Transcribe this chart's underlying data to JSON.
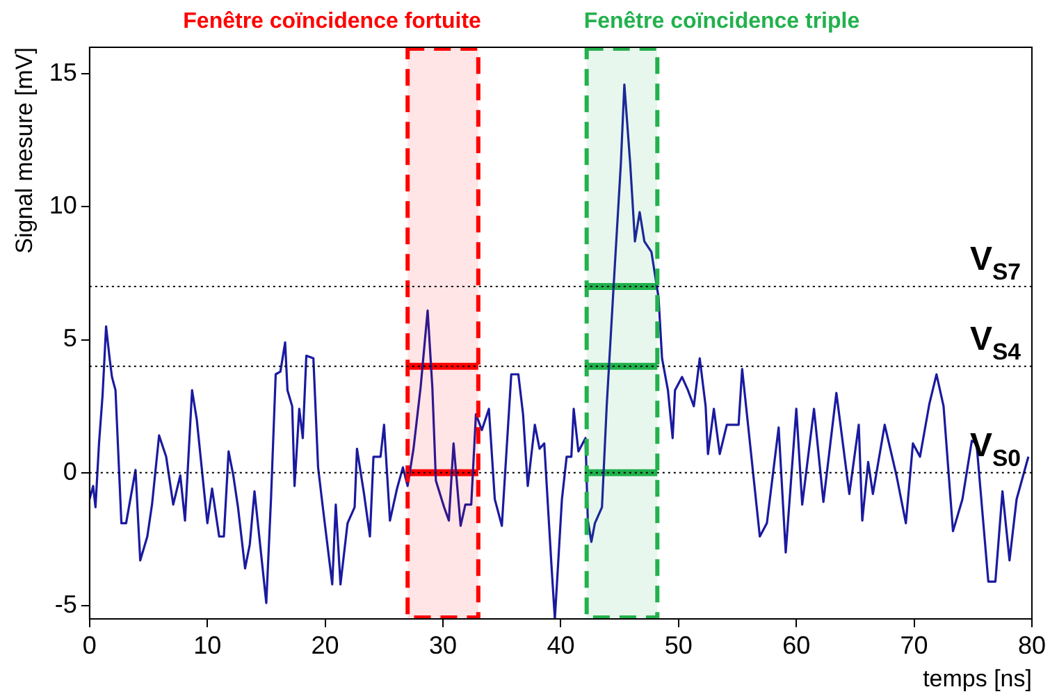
{
  "chart_data": {
    "type": "line",
    "xlabel": "temps [ns]",
    "ylabel": "Signal mesure [mV]",
    "xlim": [
      0,
      80
    ],
    "xticks": [
      0,
      10,
      20,
      30,
      40,
      50,
      60,
      70,
      80
    ],
    "ylim": [
      -5.5,
      16
    ],
    "yticks": [
      -5,
      0,
      5,
      10,
      15
    ],
    "series": [
      {
        "color": "#1a1aa0",
        "x": [
          0,
          0.3,
          0.5,
          0.8,
          1.1,
          1.4,
          1.7,
          1.9,
          2.2,
          2.7,
          3.1,
          3.9,
          4.3,
          4.9,
          5.3,
          5.9,
          6.5,
          7.1,
          7.7,
          8.1,
          8.7,
          9.1,
          10,
          10.4,
          11,
          11.4,
          11.8,
          12.2,
          12.6,
          13.2,
          13.6,
          14,
          15,
          15.4,
          15.8,
          16.2,
          16.6,
          16.8,
          17.2,
          17.4,
          17.8,
          18.1,
          18.4,
          19,
          19.4,
          19.8,
          20.6,
          20.9,
          21.3,
          21.9,
          22.5,
          22.7,
          23.3,
          23.8,
          24.1,
          24.7,
          25,
          25.5,
          26.1,
          26.6,
          27,
          27.5,
          28.1,
          28.7,
          29.1,
          29.4,
          30.1,
          30.5,
          30.9,
          31.5,
          31.9,
          32.4,
          32.8,
          33.3,
          33.9,
          34.4,
          35,
          35.8,
          36.4,
          36.8,
          37.2,
          37.8,
          38.2,
          38.6,
          39.2,
          39.5,
          40.1,
          40.5,
          40.9,
          41.1,
          41.5,
          42.1,
          42.3,
          42.6,
          42.9,
          43.5,
          43.9,
          44.5,
          45.1,
          45.4,
          45.9,
          46.3,
          46.7,
          47.1,
          47.7,
          48.3,
          48.6,
          49.1,
          49.5,
          49.7,
          50.3,
          50.8,
          51.3,
          51.8,
          52.3,
          52.5,
          53,
          53.5,
          54.1,
          55.1,
          55.4,
          55.9,
          56.9,
          57.5,
          58.5,
          59.1,
          60,
          60.5,
          61.5,
          62.3,
          63.4,
          64.5,
          65.3,
          65.6,
          66.1,
          66.5,
          67.5,
          68.5,
          69.3,
          69.9,
          70.5,
          71.3,
          71.9,
          72.5,
          73.3,
          74.1,
          74.9,
          75.3,
          76.3,
          76.9,
          77.5,
          78.1,
          78.7,
          79.7
        ],
        "values": [
          -1,
          -0.5,
          -1.3,
          1.1,
          2.9,
          5.5,
          4.3,
          3.6,
          3.1,
          -1.9,
          -1.9,
          0.1,
          -3.3,
          -2.4,
          -1.2,
          1.4,
          0.6,
          -1.2,
          -0.1,
          -1.8,
          3.1,
          2,
          -1.9,
          -0.6,
          -2.4,
          -2.4,
          0.8,
          -0.1,
          -1.3,
          -3.6,
          -2.7,
          -0.7,
          -4.9,
          -1,
          3.7,
          3.8,
          4.9,
          3.1,
          2.5,
          -0.5,
          2.4,
          1.3,
          4.4,
          4.3,
          0.2,
          -1.3,
          -4.2,
          -1.2,
          -4.2,
          -1.9,
          -1.3,
          0.9,
          -0.8,
          -2.4,
          0.6,
          0.6,
          1.8,
          -1.8,
          -0.6,
          0.2,
          -0.5,
          0.9,
          3.2,
          6.1,
          3.2,
          -0.3,
          -1.3,
          -1.8,
          1.1,
          -2,
          -1.2,
          -1.2,
          2.2,
          1.6,
          2.4,
          -1,
          -2,
          3.7,
          3.7,
          2.2,
          -0.5,
          1.8,
          0.9,
          1.1,
          -3.4,
          -5.5,
          -1,
          0.6,
          0.6,
          2.4,
          0.8,
          1.3,
          -1.8,
          -2.6,
          -1.9,
          -1.3,
          2.5,
          7.1,
          11.6,
          14.6,
          11.6,
          8.7,
          9.8,
          8.7,
          8.3,
          6.6,
          4.3,
          3.1,
          1.3,
          3.1,
          3.6,
          3.1,
          2.5,
          4.3,
          2.5,
          0.7,
          2.4,
          0.7,
          1.8,
          1.8,
          3.9,
          1.8,
          -2.4,
          -1.9,
          1.7,
          -3,
          2.4,
          -1.2,
          2.4,
          -1.1,
          3,
          -0.8,
          1.8,
          -1.8,
          0.4,
          -0.8,
          1.8,
          -0.1,
          -1.9,
          1.1,
          0.6,
          2.6,
          3.7,
          2.5,
          -2.2,
          -1,
          1.2,
          1.1,
          -4.1,
          -4.1,
          -0.7,
          -3.3,
          -1,
          0.6
        ]
      },
      {
        "color": "#ff0000",
        "x": [
          27,
          33
        ],
        "values": [
          4,
          4
        ]
      },
      {
        "color": "#ff0000",
        "x": [
          27,
          33
        ],
        "values": [
          0,
          0
        ]
      },
      {
        "color": "#22b14c",
        "x": [
          42.2,
          48.2
        ],
        "values": [
          7,
          7
        ]
      },
      {
        "color": "#22b14c",
        "x": [
          42.2,
          48.2
        ],
        "values": [
          4,
          4
        ]
      },
      {
        "color": "#22b14c",
        "x": [
          42.2,
          48.2
        ],
        "values": [
          0,
          0
        ]
      }
    ],
    "ref_lines": [
      {
        "axis": "y",
        "value": 7,
        "label": "V$_{S7}$",
        "line_style": "dotted",
        "color": "#000000"
      },
      {
        "axis": "y",
        "value": 4,
        "label": "V$_{S4}$",
        "line_style": "dotted",
        "color": "#000000"
      },
      {
        "axis": "y",
        "value": 0,
        "label": "V$_{S0}$",
        "line_style": "dotted",
        "color": "#000000"
      }
    ],
    "bands": [
      {
        "axis": "x",
        "from": 27,
        "to": 33,
        "label": "Fenêtre coïncidence fortuite",
        "color": "#ff0000"
      },
      {
        "axis": "x",
        "from": 42.2,
        "to": 48.2,
        "label": "Fenêtre coïncidence triple",
        "color": "#22b14c"
      }
    ]
  }
}
